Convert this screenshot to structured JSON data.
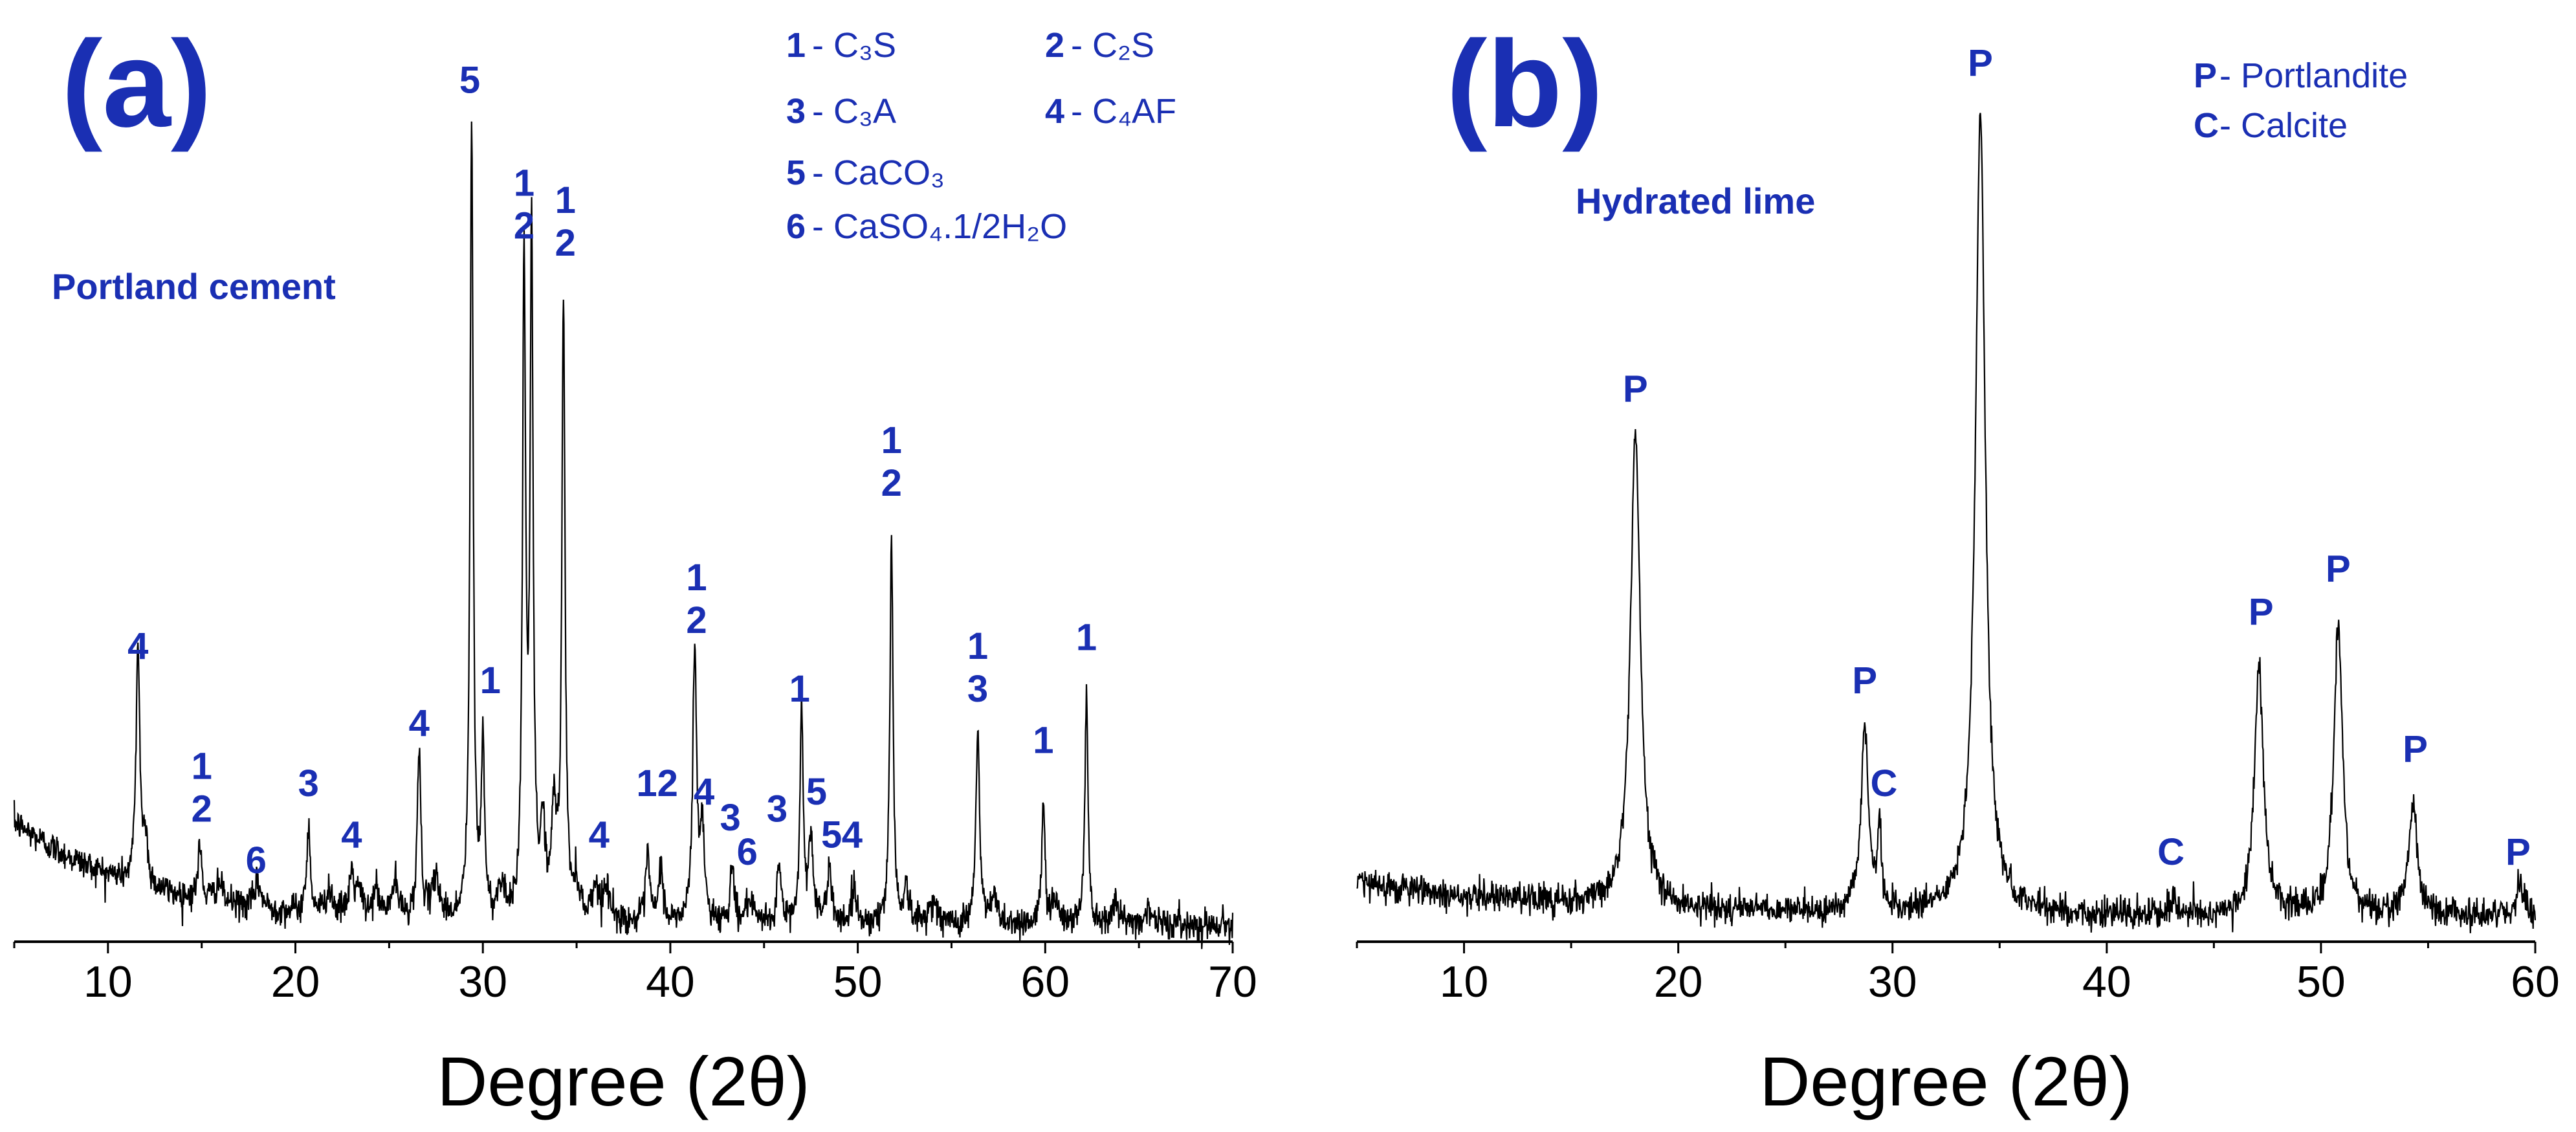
{
  "chart_data": [
    {
      "panel": "(a)",
      "type": "line",
      "sample": "Portland cement",
      "xlabel": "Degree (2θ)",
      "ylabel": "",
      "xlim": [
        5,
        70
      ],
      "ylim": [
        0,
        100
      ],
      "xticks": [
        10,
        20,
        30,
        40,
        50,
        60,
        70
      ],
      "background": {
        "start": 14,
        "decay_scale": 7,
        "floor": 2
      },
      "peaks": [
        {
          "x": 11.6,
          "height": 28,
          "w": 0.12
        },
        {
          "x": 12.0,
          "height": 5,
          "w": 0.15
        },
        {
          "x": 14.9,
          "height": 6,
          "w": 0.12
        },
        {
          "x": 15.9,
          "height": 2.5,
          "w": 0.2
        },
        {
          "x": 18.0,
          "height": 3,
          "w": 0.2
        },
        {
          "x": 20.7,
          "height": 10,
          "w": 0.12
        },
        {
          "x": 21.8,
          "height": 3,
          "w": 0.2
        },
        {
          "x": 23.0,
          "height": 5,
          "w": 0.15
        },
        {
          "x": 23.4,
          "height": 3,
          "w": 0.15
        },
        {
          "x": 24.3,
          "height": 3,
          "w": 0.2
        },
        {
          "x": 25.3,
          "height": 4,
          "w": 0.2
        },
        {
          "x": 26.6,
          "height": 19,
          "w": 0.12
        },
        {
          "x": 27.5,
          "height": 5,
          "w": 0.2
        },
        {
          "x": 29.4,
          "height": 92,
          "w": 0.1
        },
        {
          "x": 30.0,
          "height": 20,
          "w": 0.1
        },
        {
          "x": 31.0,
          "height": 4,
          "w": 0.2
        },
        {
          "x": 32.2,
          "height": 75,
          "w": 0.1
        },
        {
          "x": 32.6,
          "height": 77,
          "w": 0.1
        },
        {
          "x": 33.2,
          "height": 10,
          "w": 0.15
        },
        {
          "x": 33.8,
          "height": 12,
          "w": 0.15
        },
        {
          "x": 34.3,
          "height": 72,
          "w": 0.1
        },
        {
          "x": 35.0,
          "height": 4,
          "w": 0.2
        },
        {
          "x": 36.0,
          "height": 4,
          "w": 0.2
        },
        {
          "x": 36.6,
          "height": 4,
          "w": 0.2
        },
        {
          "x": 38.8,
          "height": 8,
          "w": 0.12
        },
        {
          "x": 39.5,
          "height": 7,
          "w": 0.12
        },
        {
          "x": 41.3,
          "height": 32,
          "w": 0.12
        },
        {
          "x": 41.7,
          "height": 10,
          "w": 0.15
        },
        {
          "x": 43.3,
          "height": 7,
          "w": 0.12
        },
        {
          "x": 44.2,
          "height": 3,
          "w": 0.15
        },
        {
          "x": 45.8,
          "height": 7,
          "w": 0.12
        },
        {
          "x": 47.0,
          "height": 25,
          "w": 0.1
        },
        {
          "x": 47.5,
          "height": 10,
          "w": 0.15
        },
        {
          "x": 48.5,
          "height": 6,
          "w": 0.15
        },
        {
          "x": 49.8,
          "height": 4,
          "w": 0.15
        },
        {
          "x": 51.8,
          "height": 45,
          "w": 0.1
        },
        {
          "x": 52.6,
          "height": 4,
          "w": 0.15
        },
        {
          "x": 54.0,
          "height": 3,
          "w": 0.2
        },
        {
          "x": 56.4,
          "height": 22,
          "w": 0.12
        },
        {
          "x": 57.3,
          "height": 3,
          "w": 0.2
        },
        {
          "x": 59.9,
          "height": 14,
          "w": 0.1
        },
        {
          "x": 60.5,
          "height": 3,
          "w": 0.2
        },
        {
          "x": 62.2,
          "height": 27,
          "w": 0.1
        },
        {
          "x": 63.7,
          "height": 3,
          "w": 0.2
        },
        {
          "x": 65.5,
          "height": 2,
          "w": 0.2
        }
      ],
      "annotations": [
        {
          "text": "4",
          "x": 11.6,
          "y": 33
        },
        {
          "text": "1",
          "x": 15.0,
          "y": 19
        },
        {
          "text": "2",
          "x": 15.0,
          "y": 14
        },
        {
          "text": "6",
          "x": 17.9,
          "y": 8
        },
        {
          "text": "3",
          "x": 20.7,
          "y": 17
        },
        {
          "text": "4",
          "x": 23.0,
          "y": 11
        },
        {
          "text": "4",
          "x": 26.6,
          "y": 24
        },
        {
          "text": "5",
          "x": 29.3,
          "y": 99
        },
        {
          "text": "1",
          "x": 30.4,
          "y": 29
        },
        {
          "text": "1",
          "x": 32.2,
          "y": 87
        },
        {
          "text": "2",
          "x": 32.2,
          "y": 82
        },
        {
          "text": "1",
          "x": 34.4,
          "y": 85
        },
        {
          "text": "2",
          "x": 34.4,
          "y": 80
        },
        {
          "text": "4",
          "x": 36.2,
          "y": 11
        },
        {
          "text": "12",
          "x": 39.3,
          "y": 17
        },
        {
          "text": "4",
          "x": 41.8,
          "y": 16
        },
        {
          "text": "1",
          "x": 41.4,
          "y": 41
        },
        {
          "text": "2",
          "x": 41.4,
          "y": 36
        },
        {
          "text": "3",
          "x": 43.2,
          "y": 13
        },
        {
          "text": "6",
          "x": 44.1,
          "y": 9
        },
        {
          "text": "3",
          "x": 45.7,
          "y": 14
        },
        {
          "text": "1",
          "x": 46.9,
          "y": 28
        },
        {
          "text": "5",
          "x": 47.8,
          "y": 16
        },
        {
          "text": "5",
          "x": 48.6,
          "y": 11
        },
        {
          "text": "4",
          "x": 49.7,
          "y": 11
        },
        {
          "text": "1",
          "x": 51.8,
          "y": 57
        },
        {
          "text": "2",
          "x": 51.8,
          "y": 52
        },
        {
          "text": "1",
          "x": 56.4,
          "y": 33
        },
        {
          "text": "3",
          "x": 56.4,
          "y": 28
        },
        {
          "text": "1",
          "x": 59.9,
          "y": 22
        },
        {
          "text": "1",
          "x": 62.2,
          "y": 34
        }
      ],
      "legend": [
        {
          "code": "1",
          "label": "C₃S"
        },
        {
          "code": "2",
          "label": "C₂S"
        },
        {
          "code": "3",
          "label": "C₃A"
        },
        {
          "code": "4",
          "label": "C₄AF"
        },
        {
          "code": "5",
          "label": "CaCO₃"
        },
        {
          "code": "6",
          "label": "CaSO₄.1/2H₂O"
        }
      ]
    },
    {
      "panel": "(b)",
      "type": "line",
      "sample": "Hydrated lime",
      "xlabel": "Degree (2θ)",
      "ylabel": "",
      "xlim": [
        5,
        60
      ],
      "ylim": [
        0,
        100
      ],
      "xticks": [
        10,
        20,
        30,
        40,
        50,
        60
      ],
      "background": {
        "start": 7,
        "decay_scale": 10,
        "floor": 3
      },
      "peaks": [
        {
          "x": 18.0,
          "height": 55,
          "w": 0.28
        },
        {
          "x": 28.7,
          "height": 21,
          "w": 0.22
        },
        {
          "x": 29.4,
          "height": 9,
          "w": 0.1
        },
        {
          "x": 34.1,
          "height": 93,
          "w": 0.28
        },
        {
          "x": 43.1,
          "height": 2.5,
          "w": 0.12
        },
        {
          "x": 47.1,
          "height": 29,
          "w": 0.25
        },
        {
          "x": 50.8,
          "height": 34,
          "w": 0.24
        },
        {
          "x": 54.3,
          "height": 13,
          "w": 0.24
        },
        {
          "x": 59.3,
          "height": 3,
          "w": 0.22
        }
      ],
      "annotations": [
        {
          "text": "P",
          "x": 18.0,
          "y": 63
        },
        {
          "text": "P",
          "x": 28.7,
          "y": 29
        },
        {
          "text": "C",
          "x": 29.6,
          "y": 17
        },
        {
          "text": "P",
          "x": 34.1,
          "y": 101
        },
        {
          "text": "C",
          "x": 43.0,
          "y": 9
        },
        {
          "text": "P",
          "x": 47.2,
          "y": 37
        },
        {
          "text": "P",
          "x": 50.8,
          "y": 42
        },
        {
          "text": "P",
          "x": 54.4,
          "y": 21
        },
        {
          "text": "P",
          "x": 59.2,
          "y": 9
        }
      ],
      "legend": [
        {
          "code": "P",
          "label": "Portlandite"
        },
        {
          "code": "C",
          "label": "Calcite"
        }
      ]
    }
  ]
}
